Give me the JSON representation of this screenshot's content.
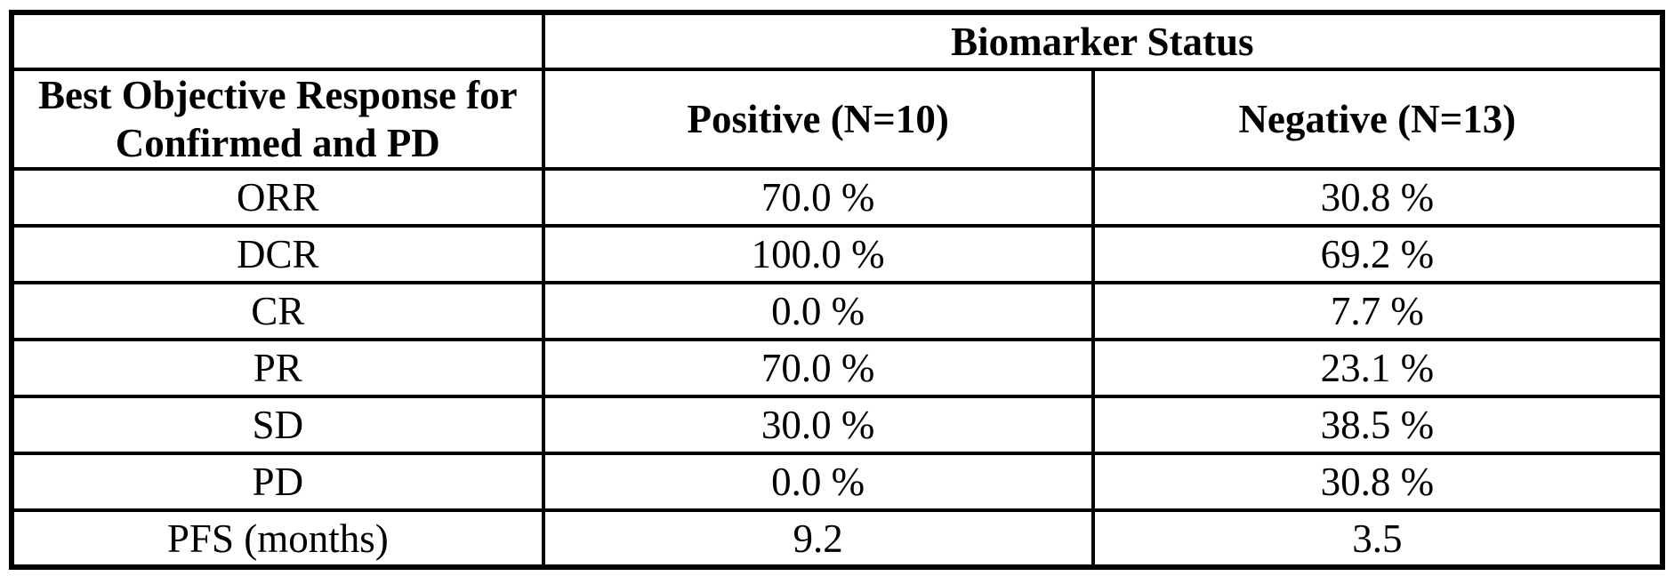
{
  "colors": {
    "border": "#000000",
    "background": "#ffffff",
    "text": "#000000"
  },
  "table": {
    "top_header": {
      "corner": "",
      "biomarker_status": "Biomarker Status"
    },
    "col_headers": {
      "row_label_line1": "Best Objective Response for",
      "row_label_line2": "Confirmed and PD",
      "positive": "Positive (N=10)",
      "negative": "Negative (N=13)"
    },
    "rows": [
      {
        "label": "ORR",
        "positive": "70.0 %",
        "negative": "30.8 %"
      },
      {
        "label": "DCR",
        "positive": "100.0 %",
        "negative": "69.2 %"
      },
      {
        "label": "CR",
        "positive": "0.0 %",
        "negative": "7.7 %"
      },
      {
        "label": "PR",
        "positive": "70.0 %",
        "negative": "23.1 %"
      },
      {
        "label": "SD",
        "positive": "30.0 %",
        "negative": "38.5 %"
      },
      {
        "label": "PD",
        "positive": "0.0 %",
        "negative": "30.8 %"
      },
      {
        "label": "PFS (months)",
        "positive": "9.2",
        "negative": "3.5"
      }
    ]
  },
  "chart_data": {
    "type": "table",
    "title": "Biomarker Status",
    "row_header": "Best Objective Response for Confirmed and PD",
    "columns": [
      "Positive (N=10)",
      "Negative (N=13)"
    ],
    "categories": [
      "ORR",
      "DCR",
      "CR",
      "PR",
      "SD",
      "PD",
      "PFS (months)"
    ],
    "series": [
      {
        "name": "Positive (N=10)",
        "values": [
          70.0,
          100.0,
          0.0,
          70.0,
          30.0,
          0.0,
          9.2
        ]
      },
      {
        "name": "Negative (N=13)",
        "values": [
          30.8,
          69.2,
          7.7,
          23.1,
          38.5,
          30.8,
          3.5
        ]
      }
    ],
    "units": [
      "%",
      "%",
      "%",
      "%",
      "%",
      "%",
      "months"
    ]
  }
}
